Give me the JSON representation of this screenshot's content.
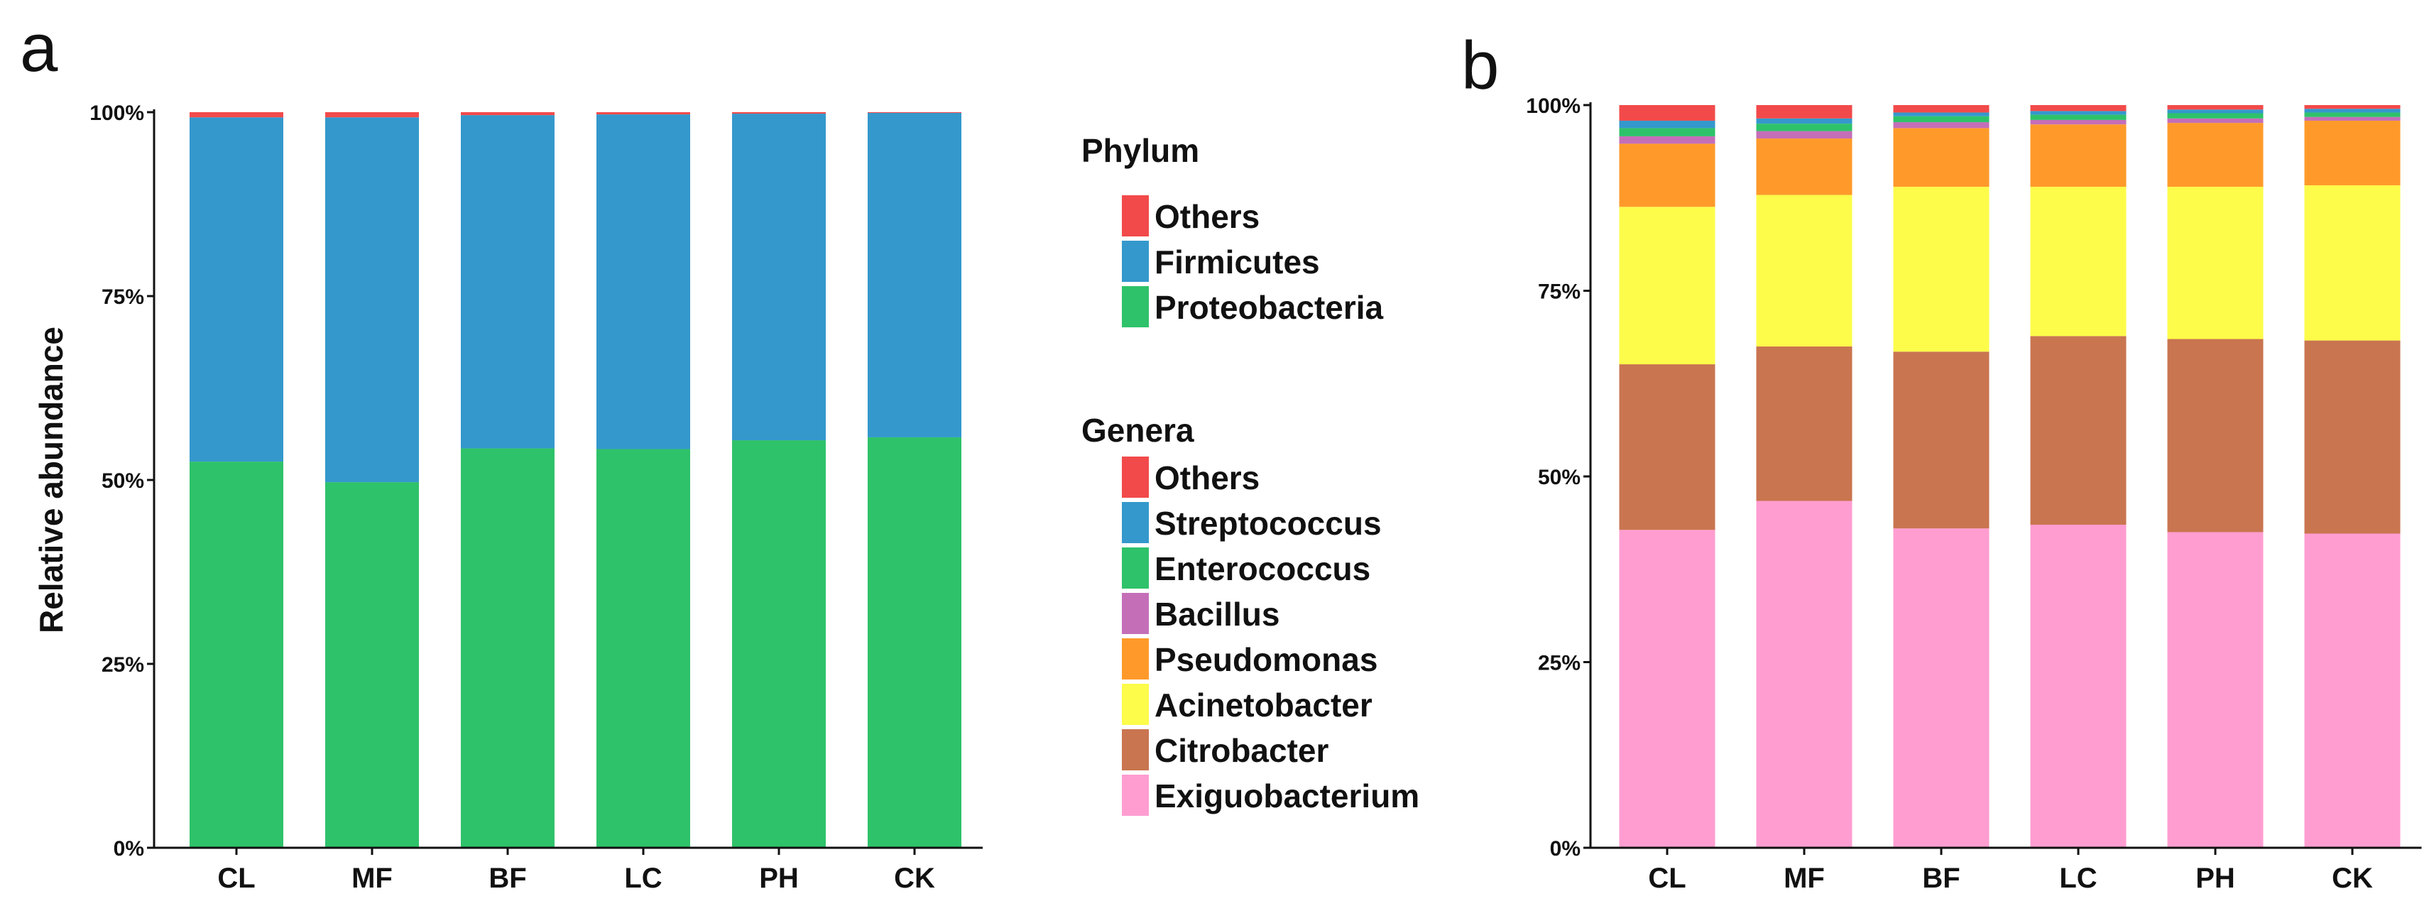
{
  "chart_data": [
    {
      "panel": "a",
      "type": "bar",
      "stacked": true,
      "ylabel": "Relative abundance",
      "categories": [
        "CL",
        "MF",
        "BF",
        "LC",
        "PH",
        "CK"
      ],
      "yticks": [
        "0%",
        "25%",
        "50%",
        "75%",
        "100%"
      ],
      "ylim": [
        0,
        100
      ],
      "legend_title": "Phylum",
      "series": [
        {
          "name": "Proteobacteria",
          "color": "#2ec26a",
          "values": [
            52.5,
            49.7,
            54.3,
            54.2,
            55.4,
            55.8
          ]
        },
        {
          "name": "Firmicutes",
          "color": "#3498cc",
          "values": [
            46.8,
            49.6,
            45.3,
            45.5,
            44.4,
            44.1
          ]
        },
        {
          "name": "Others",
          "color": "#f24a4a",
          "values": [
            0.7,
            0.7,
            0.4,
            0.3,
            0.2,
            0.1
          ]
        }
      ]
    },
    {
      "panel": "b",
      "type": "bar",
      "stacked": true,
      "ylabel": "",
      "categories": [
        "CL",
        "MF",
        "BF",
        "LC",
        "PH",
        "CK"
      ],
      "yticks": [
        "0%",
        "25%",
        "50%",
        "75%",
        "100%"
      ],
      "ylim": [
        0,
        100
      ],
      "legend_title": "Genera",
      "series": [
        {
          "name": "Exiguobacterium",
          "color": "#ff9dd1",
          "values": [
            42.8,
            46.7,
            43.0,
            43.5,
            42.5,
            42.3
          ]
        },
        {
          "name": "Citrobacter",
          "color": "#c97550",
          "values": [
            22.3,
            20.8,
            23.8,
            25.4,
            26.0,
            26.0
          ]
        },
        {
          "name": "Acinetobacter",
          "color": "#fdfc4a",
          "values": [
            21.2,
            20.4,
            22.2,
            20.1,
            20.5,
            20.9
          ]
        },
        {
          "name": "Pseudomonas",
          "color": "#ff9a2a",
          "values": [
            8.5,
            7.6,
            7.9,
            8.4,
            8.6,
            8.7
          ]
        },
        {
          "name": "Bacillus",
          "color": "#c46eb8",
          "values": [
            1.0,
            1.0,
            0.8,
            0.6,
            0.6,
            0.5
          ]
        },
        {
          "name": "Enterococcus",
          "color": "#2ec26a",
          "values": [
            1.1,
            1.0,
            0.8,
            0.7,
            0.7,
            0.6
          ]
        },
        {
          "name": "Streptococcus",
          "color": "#3498cc",
          "values": [
            1.0,
            0.7,
            0.5,
            0.5,
            0.5,
            0.5
          ]
        },
        {
          "name": "Others",
          "color": "#f24a4a",
          "values": [
            2.1,
            1.8,
            1.0,
            0.8,
            0.6,
            0.5
          ]
        }
      ]
    }
  ]
}
